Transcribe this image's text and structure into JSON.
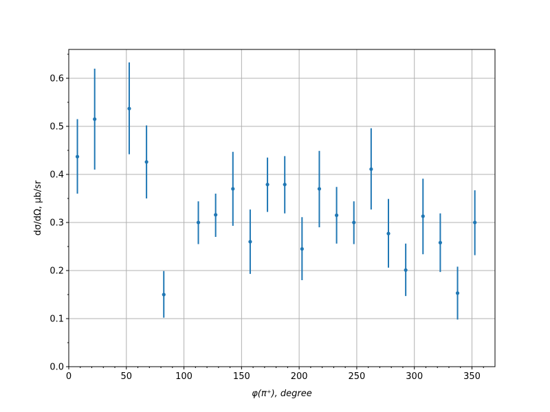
{
  "chart_data": {
    "type": "scatter",
    "title": "",
    "xlabel": "φ(π⁺), degree",
    "ylabel": "dσ/dΩ, μb/sr",
    "xlim": [
      0,
      370
    ],
    "ylim": [
      0,
      0.66
    ],
    "xticks": [
      0,
      50,
      100,
      150,
      200,
      250,
      300,
      350
    ],
    "yticks": [
      0.0,
      0.1,
      0.2,
      0.3,
      0.4,
      0.5,
      0.6
    ],
    "xtick_labels": [
      "0",
      "50",
      "100",
      "150",
      "200",
      "250",
      "300",
      "350"
    ],
    "ytick_labels": [
      "0.0",
      "0.1",
      "0.2",
      "0.3",
      "0.4",
      "0.5",
      "0.6"
    ],
    "grid": true,
    "color": "#1f77b4",
    "series": [
      {
        "points": [
          {
            "x": 7.5,
            "y": 0.437,
            "yerr_low": 0.36,
            "yerr_high": 0.515
          },
          {
            "x": 22.5,
            "y": 0.515,
            "yerr_low": 0.41,
            "yerr_high": 0.62
          },
          {
            "x": 52.5,
            "y": 0.537,
            "yerr_low": 0.442,
            "yerr_high": 0.633
          },
          {
            "x": 67.5,
            "y": 0.426,
            "yerr_low": 0.35,
            "yerr_high": 0.502
          },
          {
            "x": 82.5,
            "y": 0.15,
            "yerr_low": 0.102,
            "yerr_high": 0.199
          },
          {
            "x": 112.5,
            "y": 0.3,
            "yerr_low": 0.255,
            "yerr_high": 0.344
          },
          {
            "x": 127.5,
            "y": 0.316,
            "yerr_low": 0.27,
            "yerr_high": 0.36
          },
          {
            "x": 142.5,
            "y": 0.37,
            "yerr_low": 0.293,
            "yerr_high": 0.447
          },
          {
            "x": 157.5,
            "y": 0.26,
            "yerr_low": 0.193,
            "yerr_high": 0.327
          },
          {
            "x": 172.5,
            "y": 0.379,
            "yerr_low": 0.322,
            "yerr_high": 0.435
          },
          {
            "x": 187.5,
            "y": 0.379,
            "yerr_low": 0.319,
            "yerr_high": 0.438
          },
          {
            "x": 202.5,
            "y": 0.245,
            "yerr_low": 0.18,
            "yerr_high": 0.311
          },
          {
            "x": 217.5,
            "y": 0.37,
            "yerr_low": 0.29,
            "yerr_high": 0.449
          },
          {
            "x": 232.5,
            "y": 0.315,
            "yerr_low": 0.256,
            "yerr_high": 0.374
          },
          {
            "x": 247.5,
            "y": 0.3,
            "yerr_low": 0.255,
            "yerr_high": 0.344
          },
          {
            "x": 262.5,
            "y": 0.411,
            "yerr_low": 0.327,
            "yerr_high": 0.496
          },
          {
            "x": 277.5,
            "y": 0.277,
            "yerr_low": 0.206,
            "yerr_high": 0.349
          },
          {
            "x": 292.5,
            "y": 0.201,
            "yerr_low": 0.147,
            "yerr_high": 0.256
          },
          {
            "x": 307.5,
            "y": 0.313,
            "yerr_low": 0.234,
            "yerr_high": 0.391
          },
          {
            "x": 322.5,
            "y": 0.258,
            "yerr_low": 0.197,
            "yerr_high": 0.319
          },
          {
            "x": 337.5,
            "y": 0.153,
            "yerr_low": 0.098,
            "yerr_high": 0.208
          },
          {
            "x": 352.5,
            "y": 0.3,
            "yerr_low": 0.232,
            "yerr_high": 0.367
          }
        ]
      }
    ]
  }
}
